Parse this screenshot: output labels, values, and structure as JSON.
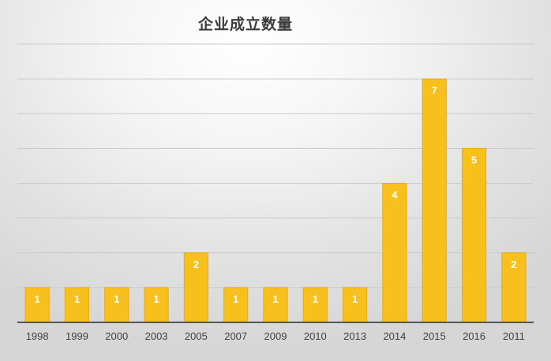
{
  "chart_data": {
    "type": "bar",
    "title": "企业成立数量",
    "categories": [
      "1998",
      "1999",
      "2000",
      "2003",
      "2005",
      "2007",
      "2009",
      "2010",
      "2013",
      "2014",
      "2015",
      "2016",
      "2011"
    ],
    "values": [
      1,
      1,
      1,
      1,
      2,
      1,
      1,
      1,
      1,
      4,
      7,
      5,
      2
    ],
    "ylim": [
      0,
      8
    ],
    "grid": true,
    "legend": "none",
    "data_labels": true,
    "bar_color": "#f8c01c",
    "label_color": "#ffffff"
  }
}
